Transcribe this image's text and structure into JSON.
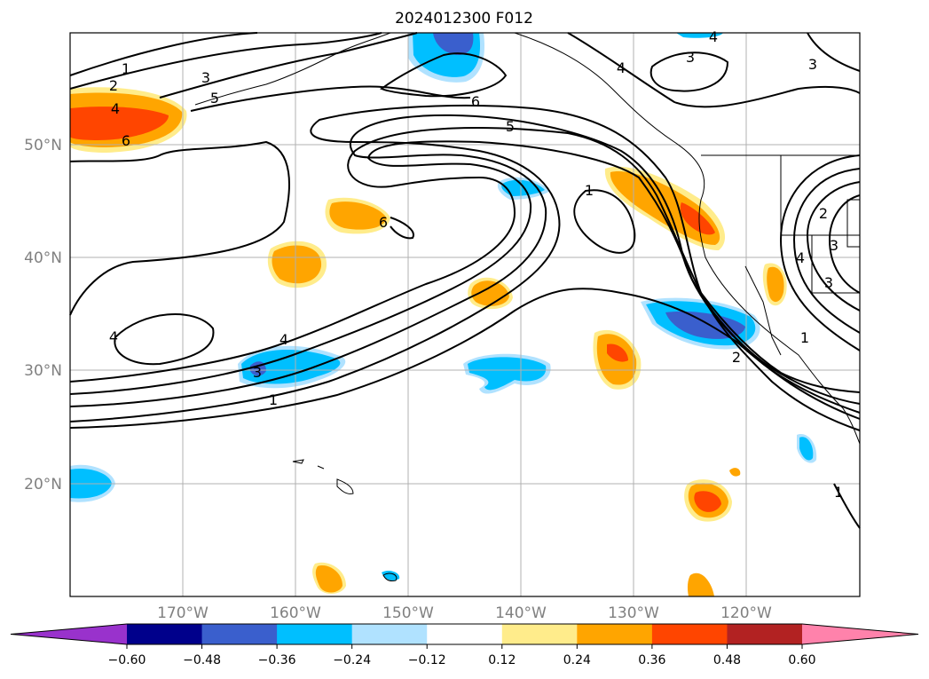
{
  "title": "2024012300 F012",
  "lon_labels": [
    "170°W",
    "160°W",
    "150°W",
    "140°W",
    "130°W",
    "120°W"
  ],
  "lat_labels": [
    "50°N",
    "40°N",
    "30°N",
    "20°N"
  ],
  "colorbar": {
    "ticks": [
      "−0.60",
      "−0.48",
      "−0.36",
      "−0.24",
      "−0.12",
      "0.12",
      "0.24",
      "0.36",
      "0.48",
      "0.60"
    ],
    "colors": [
      "#9932cc",
      "#00008b",
      "#3a5fcd",
      "#00bfff",
      "#b0e2ff",
      "#ffffff",
      "#ffec8b",
      "#ffa500",
      "#ff4500",
      "#b22222",
      "#ff82ab"
    ]
  },
  "contour_labels": [
    "1",
    "2",
    "3",
    "4",
    "5",
    "6",
    "3",
    "6",
    "5",
    "1",
    "6",
    "4",
    "3",
    "1",
    "4",
    "3",
    "2",
    "1",
    "4",
    "3",
    "4",
    "2",
    "1",
    "4",
    "3"
  ]
}
